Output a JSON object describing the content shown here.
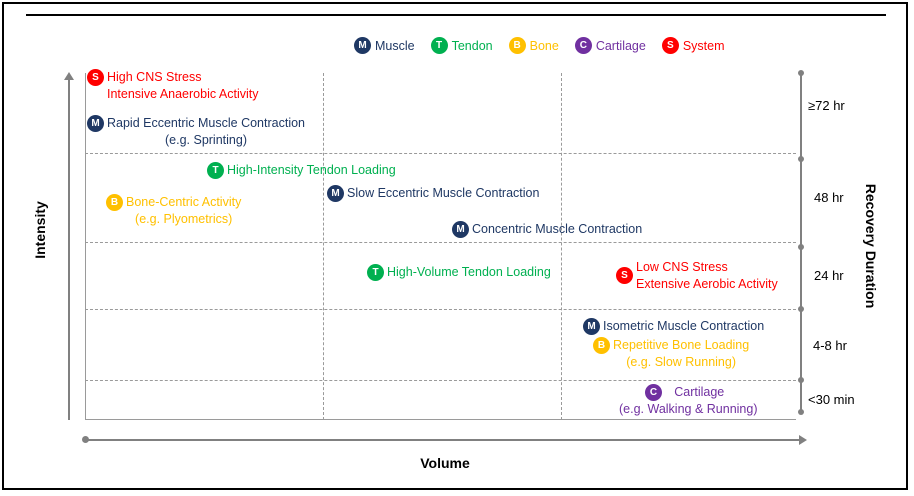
{
  "colors": {
    "muscle": "#1f3864",
    "tendon": "#00b050",
    "bone": "#ffc000",
    "cartilage": "#7030a0",
    "system": "#ff0000",
    "axis": "#808080",
    "grid": "#9a9a9a"
  },
  "legend": [
    {
      "key": "muscle",
      "letter": "M",
      "label": "Muscle"
    },
    {
      "key": "tendon",
      "letter": "T",
      "label": "Tendon"
    },
    {
      "key": "bone",
      "letter": "B",
      "label": "Bone"
    },
    {
      "key": "cartilage",
      "letter": "C",
      "label": "Cartilage"
    },
    {
      "key": "system",
      "letter": "S",
      "label": "System"
    }
  ],
  "axes": {
    "y_title": "Intensity",
    "x_title": "Volume",
    "right_title": "Recovery Duration"
  },
  "durations": [
    "≥72 hr",
    "48 hr",
    "24 hr",
    "4-8 hr",
    "<30 min"
  ],
  "items": [
    {
      "key": "system",
      "letter": "S",
      "lines": [
        "High CNS Stress",
        "Intensive Anaerobic Activity"
      ]
    },
    {
      "key": "muscle",
      "letter": "M",
      "lines": [
        "Rapid Eccentric Muscle Contraction",
        "(e.g. Sprinting)"
      ]
    },
    {
      "key": "tendon",
      "letter": "T",
      "lines": [
        "High-Intensity Tendon Loading"
      ]
    },
    {
      "key": "bone",
      "letter": "B",
      "lines": [
        "Bone-Centric Activity",
        "(e.g. Plyometrics)"
      ]
    },
    {
      "key": "muscle",
      "letter": "M",
      "lines": [
        "Slow Eccentric Muscle Contraction"
      ]
    },
    {
      "key": "muscle",
      "letter": "M",
      "lines": [
        "Concentric Muscle Contraction"
      ]
    },
    {
      "key": "tendon",
      "letter": "T",
      "lines": [
        "High-Volume Tendon Loading"
      ]
    },
    {
      "key": "system",
      "letter": "S",
      "lines": [
        "Low CNS Stress",
        "Extensive Aerobic Activity"
      ]
    },
    {
      "key": "muscle",
      "letter": "M",
      "lines": [
        "Isometric Muscle Contraction"
      ]
    },
    {
      "key": "bone",
      "letter": "B",
      "lines": [
        "Repetitive Bone Loading",
        "(e.g. Slow Running)"
      ]
    },
    {
      "key": "cartilage",
      "letter": "C",
      "lines": [
        "Cartilage",
        "(e.g. Walking & Running)"
      ]
    }
  ]
}
